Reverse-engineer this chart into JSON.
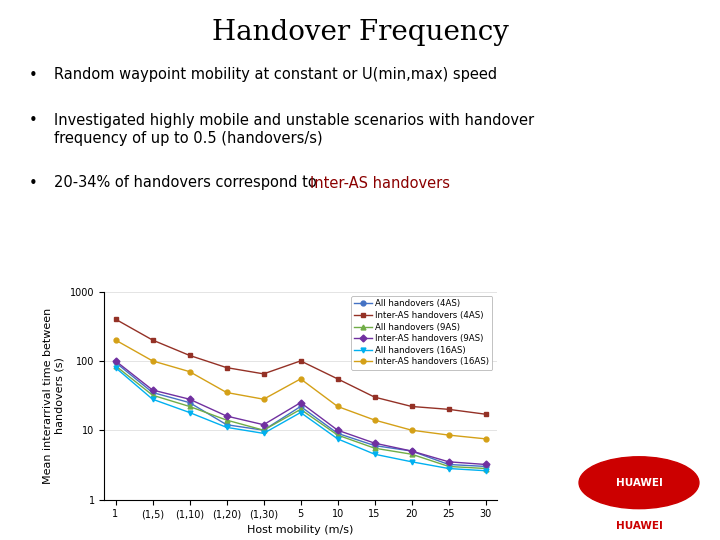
{
  "title": "Handover Frequency",
  "bullet1": "Random waypoint mobility at constant or U(min,max) speed",
  "bullet2": "Investigated highly mobile and unstable scenarios with handover\nfrequency of up to 0.5 (handovers/s)",
  "bullet3_black": "20-34% of handovers correspond to ",
  "bullet3_red": "Inter-AS handovers",
  "xlabel": "Host mobility (m/s)",
  "ylabel": "Mean interarrival time between\nhandovers (s)",
  "x_labels": [
    "1",
    "(1,5)",
    "(1,10)",
    "(1,20)",
    "(1,30)",
    "5",
    "10",
    "15",
    "20",
    "25",
    "30"
  ],
  "x_positions": [
    0,
    1,
    2,
    3,
    4,
    5,
    6,
    7,
    8,
    9,
    10
  ],
  "series": [
    {
      "label": "All handovers (4AS)",
      "color": "#4472C4",
      "marker": "o",
      "data": [
        95,
        35,
        25,
        12,
        10,
        22,
        9,
        6,
        5,
        3.2,
        3.0
      ]
    },
    {
      "label": "Inter-AS handovers (4AS)",
      "color": "#943126",
      "marker": "s",
      "data": [
        400,
        200,
        120,
        80,
        65,
        100,
        55,
        30,
        22,
        20,
        17
      ]
    },
    {
      "label": "All handovers (9AS)",
      "color": "#70AD47",
      "marker": "^",
      "data": [
        85,
        32,
        22,
        14,
        10,
        20,
        8.5,
        5.5,
        4.5,
        3.0,
        2.8
      ]
    },
    {
      "label": "Inter-AS handovers (9AS)",
      "color": "#7030A0",
      "marker": "D",
      "data": [
        100,
        38,
        28,
        16,
        12,
        25,
        10,
        6.5,
        5.0,
        3.5,
        3.2
      ]
    },
    {
      "label": "All handovers (16AS)",
      "color": "#00B0F0",
      "marker": "v",
      "data": [
        80,
        28,
        18,
        11,
        9,
        18,
        7.5,
        4.5,
        3.5,
        2.8,
        2.6
      ]
    },
    {
      "label": "Inter-AS handovers (16AS)",
      "color": "#D4A017",
      "marker": "o",
      "data": [
        200,
        100,
        70,
        35,
        28,
        55,
        22,
        14,
        10,
        8.5,
        7.5
      ]
    }
  ],
  "ylim_log": [
    1,
    1000
  ],
  "background_color": "#ffffff",
  "title_fontsize": 20,
  "bullet_fontsize": 10.5,
  "axis_fontsize": 8,
  "tick_fontsize": 7
}
